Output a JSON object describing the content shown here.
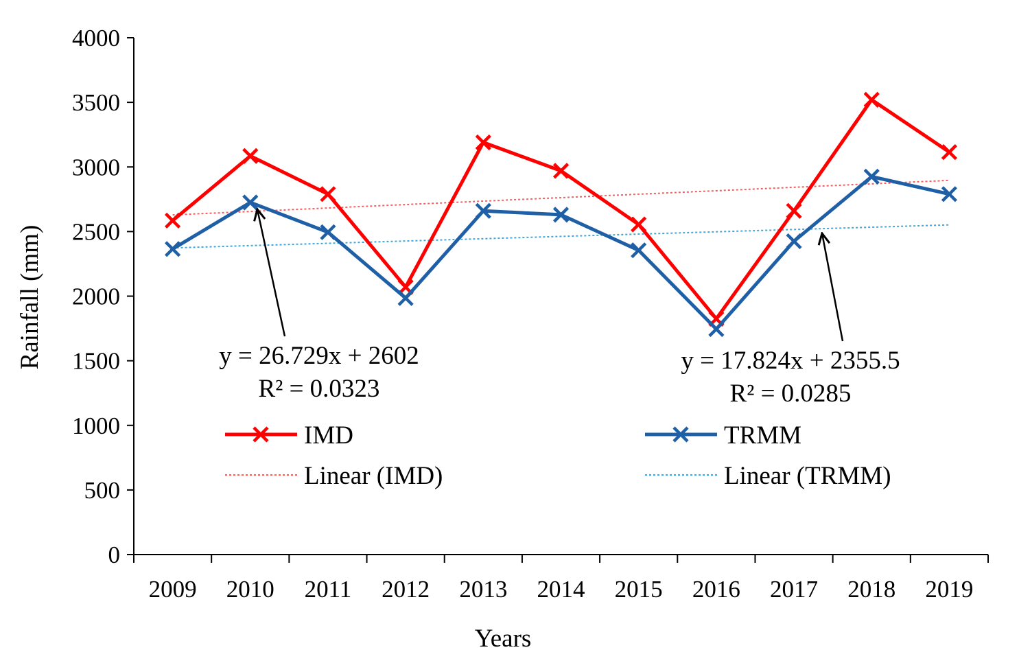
{
  "chart_data": {
    "type": "line",
    "title": "",
    "xlabel": "Years",
    "ylabel": "Rainfall (mm)",
    "categories": [
      "2009",
      "2010",
      "2011",
      "2012",
      "2013",
      "2014",
      "2015",
      "2016",
      "2017",
      "2018",
      "2019"
    ],
    "ylim": [
      0,
      4000
    ],
    "yticks": [
      "0",
      "500",
      "1000",
      "1500",
      "2000",
      "2500",
      "3000",
      "3500",
      "4000"
    ],
    "grid": false,
    "legend_position": "center",
    "series": [
      {
        "name": "IMD",
        "values": [
          2585,
          3085,
          2790,
          2070,
          3190,
          2970,
          2555,
          1825,
          2660,
          3520,
          3115
        ],
        "color": "#ff0000",
        "marker": "x"
      },
      {
        "name": "TRMM",
        "values": [
          2365,
          2725,
          2495,
          1985,
          2660,
          2630,
          2355,
          1745,
          2425,
          2925,
          2790
        ],
        "color": "#1f5fa6",
        "marker": "x"
      }
    ],
    "trendlines": [
      {
        "name": "Linear (IMD)",
        "slope": 26.729,
        "intercept": 2602,
        "color": "#ff5a5a",
        "equation": "y = 26.729x + 2602",
        "r_squared": "R² = 0.0323"
      },
      {
        "name": "Linear (TRMM)",
        "slope": 17.824,
        "intercept": 2355.5,
        "color": "#3aa8e0",
        "equation": "y = 17.824x + 2355.5",
        "r_squared": "R² = 0.0285"
      }
    ]
  }
}
